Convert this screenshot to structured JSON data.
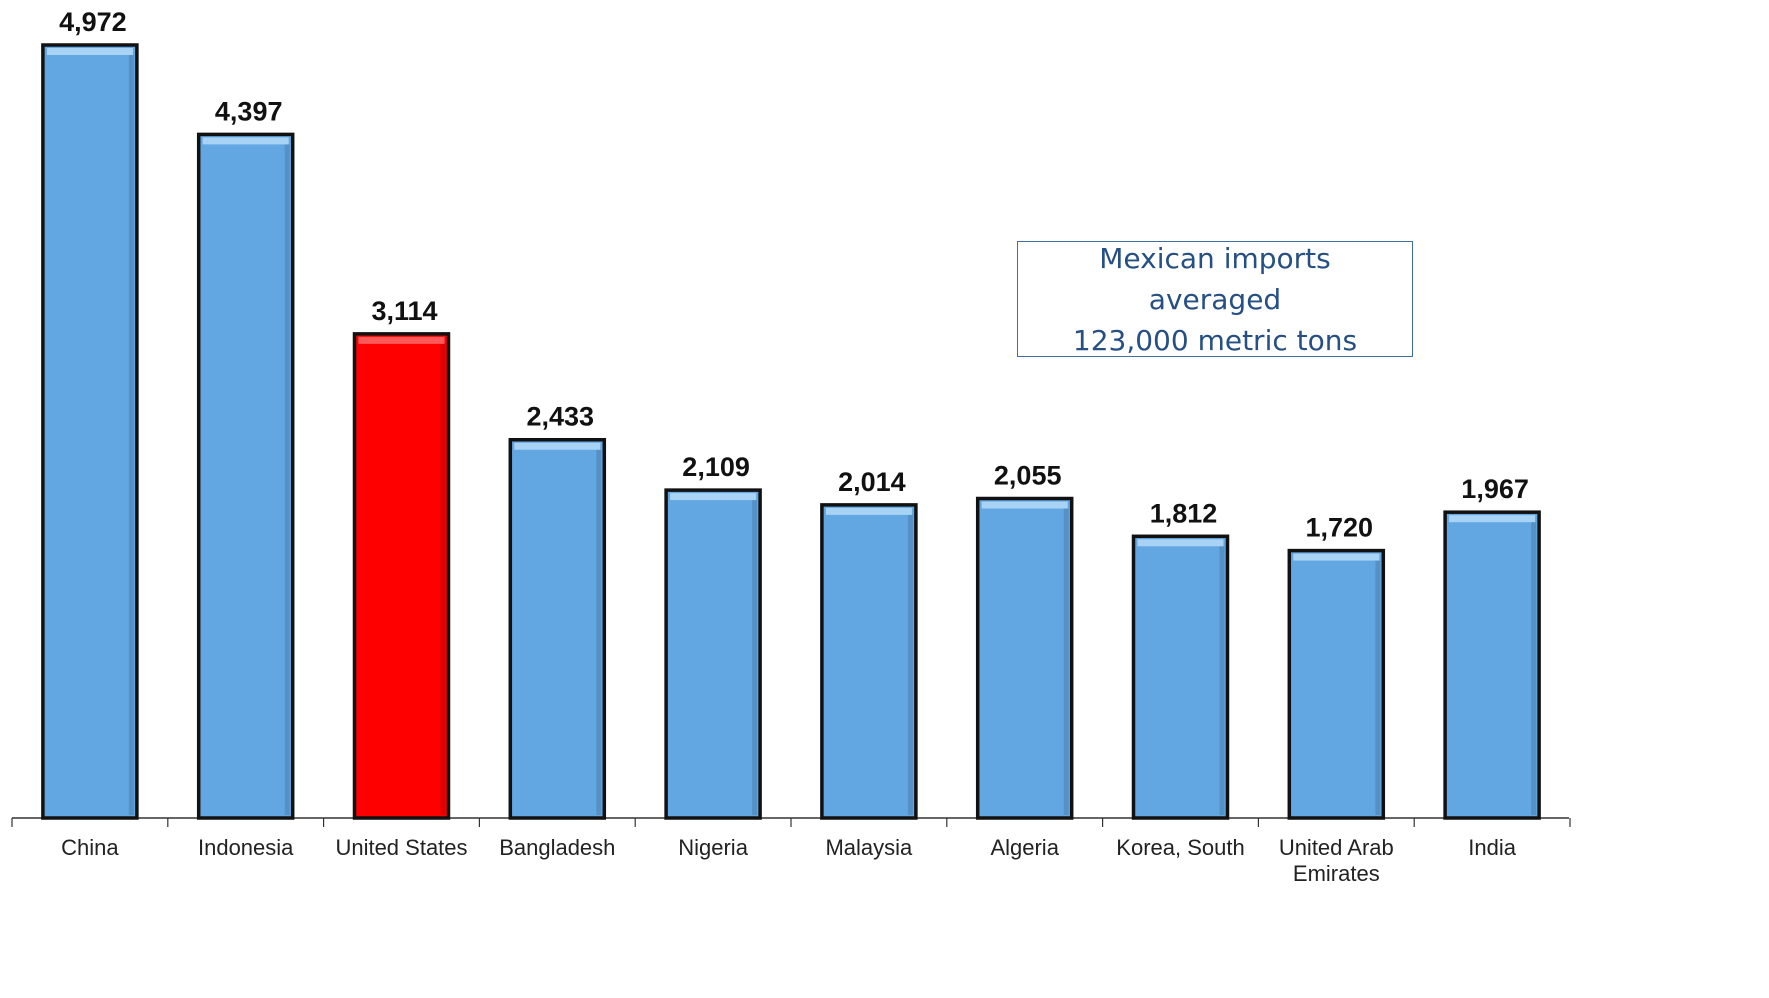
{
  "chart_data": {
    "type": "bar",
    "categories": [
      [
        "China"
      ],
      [
        "Indonesia"
      ],
      [
        "United States"
      ],
      [
        "Bangladesh"
      ],
      [
        "Nigeria"
      ],
      [
        "Malaysia"
      ],
      [
        "Algeria"
      ],
      [
        "Korea, South"
      ],
      [
        "United Arab",
        "Emirates"
      ],
      [
        "India"
      ]
    ],
    "values": [
      4972,
      4397,
      3114,
      2433,
      2109,
      2014,
      2055,
      1812,
      1720,
      1967
    ],
    "value_labels": [
      "4,972",
      "4,397",
      "3,114",
      "2,433",
      "2,109",
      "2,014",
      "2,055",
      "1,812",
      "1,720",
      "1,967"
    ],
    "highlight_index": 2,
    "colors": {
      "bar": "#62a6e2",
      "bar_top": "#a9d3f4",
      "highlight": "#ff0000",
      "highlight_top": "#ff5a5a",
      "outline": "#111111",
      "axis": "#333333"
    },
    "ylim": [
      0,
      5000
    ],
    "title": "",
    "xlabel": "",
    "ylabel": "",
    "grid": false,
    "annotation": {
      "line1": "Mexican imports averaged",
      "line2": "123,000 metric tons"
    }
  }
}
